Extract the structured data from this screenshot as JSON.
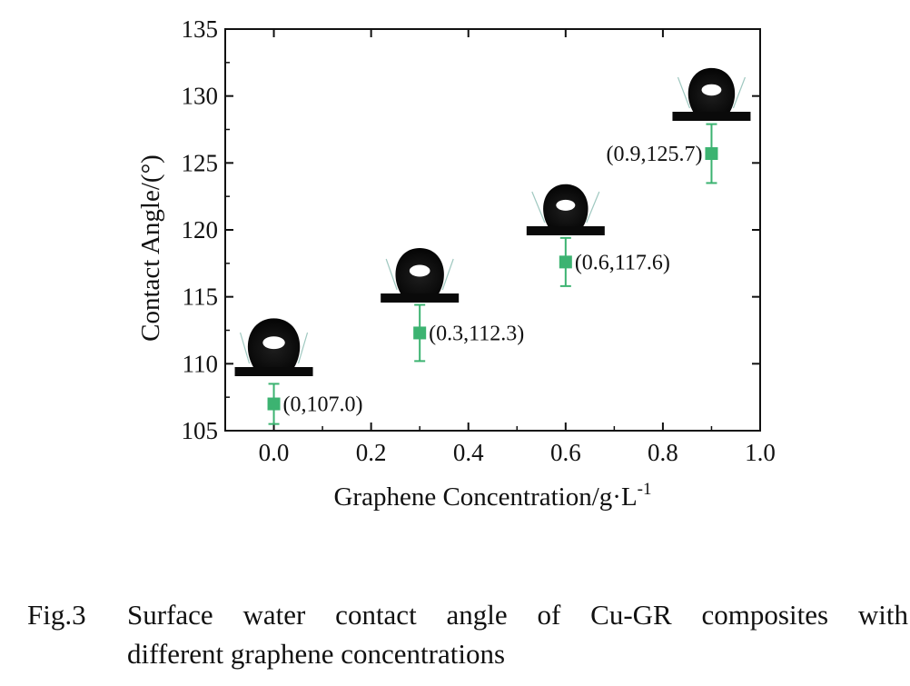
{
  "chart_data": {
    "type": "scatter",
    "xlabel": "Graphene Concentration/g·L",
    "xlabel_sup": "-1",
    "ylabel": "Contact Angle/(°)",
    "xlim": [
      -0.1,
      1.0
    ],
    "ylim": [
      105,
      135
    ],
    "xticks": [
      "0.0",
      "0.2",
      "0.4",
      "0.6",
      "0.8",
      "1.0"
    ],
    "yticks": [
      "105",
      "110",
      "115",
      "120",
      "125",
      "130",
      "135"
    ],
    "grid": false,
    "marker_color": "#3cb371",
    "points": [
      {
        "x": 0.0,
        "y": 107.0,
        "err": 1.5,
        "label": "(0,107.0)"
      },
      {
        "x": 0.3,
        "y": 112.3,
        "err": 2.1,
        "label": "(0.3,112.3)"
      },
      {
        "x": 0.6,
        "y": 117.6,
        "err": 1.8,
        "label": "(0.6,117.6)"
      },
      {
        "x": 0.9,
        "y": 125.7,
        "err": 2.2,
        "label": "(0.9,125.7)"
      }
    ]
  },
  "caption": {
    "number": "Fig.3",
    "line1": "Surface water contact angle of Cu-GR composites with",
    "line2": "different graphene concentrations"
  }
}
